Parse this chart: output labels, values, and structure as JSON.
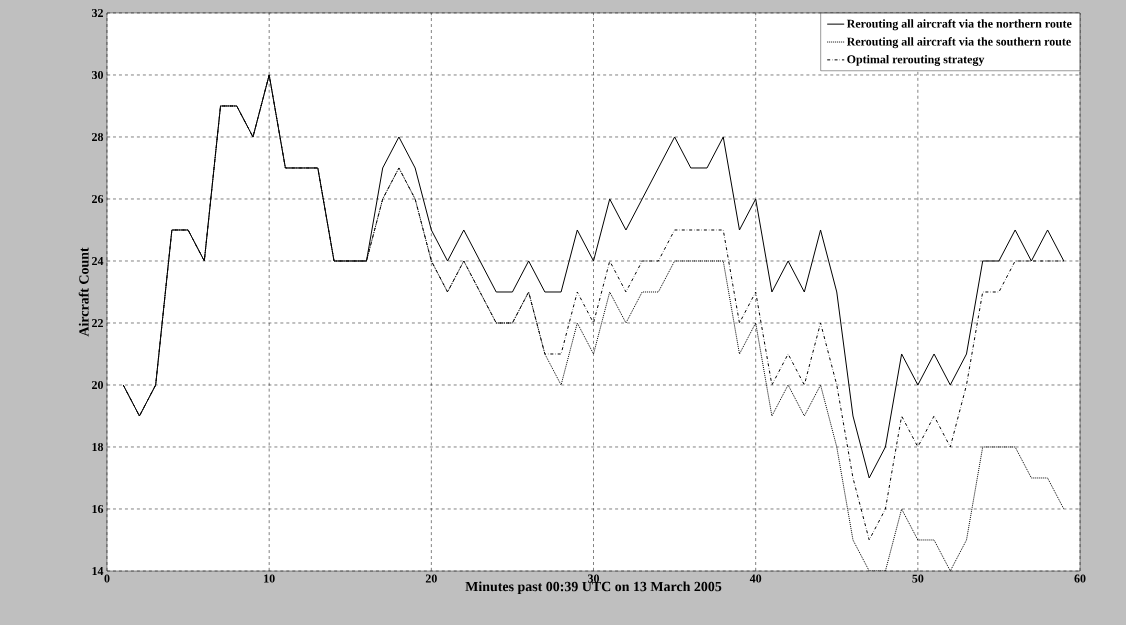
{
  "chart_data": {
    "type": "line",
    "xlabel": "Minutes past 00:39 UTC on 13 March 2005",
    "ylabel": "Aircraft Count",
    "x": [
      1,
      2,
      3,
      4,
      5,
      6,
      7,
      8,
      9,
      10,
      11,
      12,
      13,
      14,
      15,
      16,
      17,
      18,
      19,
      20,
      21,
      22,
      23,
      24,
      25,
      26,
      27,
      28,
      29,
      30,
      31,
      32,
      33,
      34,
      35,
      36,
      37,
      38,
      39,
      40,
      41,
      42,
      43,
      44,
      45,
      46,
      47,
      48,
      49,
      50,
      51,
      52,
      53,
      54,
      55,
      56,
      57,
      58,
      59
    ],
    "series": [
      {
        "name": "Rerouting all aircraft via the northern route",
        "color": "#000000",
        "line_style": "solid",
        "values": [
          20,
          19,
          20,
          25,
          25,
          24,
          29,
          29,
          28,
          30,
          27,
          27,
          27,
          24,
          24,
          24,
          27,
          28,
          27,
          25,
          24,
          25,
          24,
          23,
          23,
          24,
          23,
          23,
          25,
          24,
          26,
          25,
          26,
          27,
          28,
          27,
          27,
          28,
          25,
          26,
          23,
          24,
          23,
          25,
          23,
          19,
          17,
          18,
          21,
          20,
          21,
          20,
          21,
          24,
          24,
          25,
          24,
          25,
          24
        ]
      },
      {
        "name": "Rerouting all aircraft via the southern route",
        "color": "#000000",
        "line_style": "dotted",
        "values": [
          20,
          19,
          20,
          25,
          25,
          24,
          29,
          29,
          28,
          30,
          27,
          27,
          27,
          24,
          24,
          24,
          26,
          27,
          26,
          24,
          23,
          24,
          23,
          22,
          22,
          23,
          21,
          20,
          22,
          21,
          23,
          22,
          23,
          23,
          24,
          24,
          24,
          24,
          21,
          22,
          19,
          20,
          19,
          20,
          18,
          15,
          14,
          14,
          16,
          15,
          15,
          14,
          15,
          18,
          18,
          18,
          17,
          17,
          16
        ]
      },
      {
        "name": "Optimal rerouting strategy",
        "color": "#000000",
        "line_style": "dashdot",
        "values": [
          20,
          19,
          20,
          25,
          25,
          24,
          29,
          29,
          28,
          30,
          27,
          27,
          27,
          24,
          24,
          24,
          26,
          27,
          26,
          24,
          23,
          24,
          23,
          22,
          22,
          23,
          21,
          21,
          23,
          22,
          24,
          23,
          24,
          24,
          25,
          25,
          25,
          25,
          22,
          23,
          20,
          21,
          20,
          22,
          20,
          17,
          15,
          16,
          19,
          18,
          19,
          18,
          20,
          23,
          23,
          24,
          24,
          24,
          24
        ]
      }
    ],
    "xlim": [
      0,
      60
    ],
    "xticks": [
      0,
      10,
      20,
      30,
      40,
      50,
      60
    ],
    "ylim": [
      14,
      32
    ],
    "yticks": [
      14,
      16,
      18,
      20,
      22,
      24,
      26,
      28,
      30,
      32
    ],
    "grid": true,
    "legend": "top right"
  }
}
